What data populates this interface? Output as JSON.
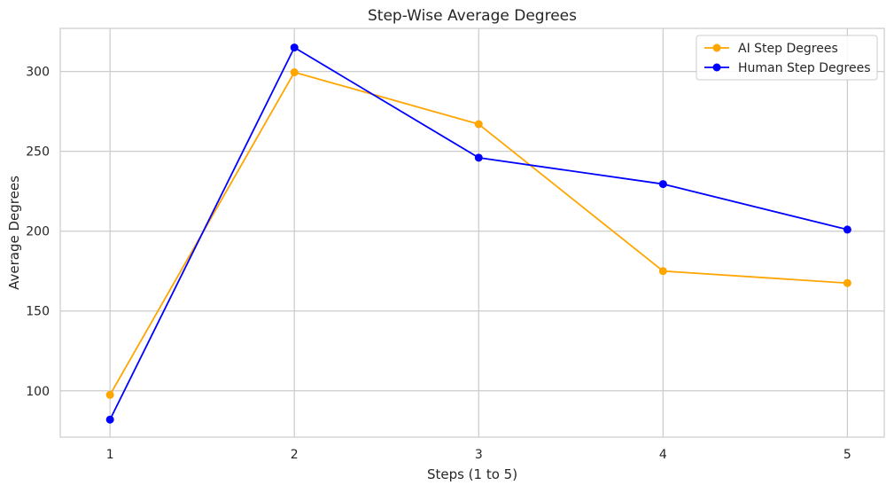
{
  "chart_data": {
    "type": "line",
    "title": "Step-Wise Average Degrees",
    "xlabel": "Steps (1 to 5)",
    "ylabel": "Average Degrees",
    "x": [
      1,
      2,
      3,
      4,
      5
    ],
    "xlim": [
      0.73,
      5.2
    ],
    "ylim": [
      71,
      327
    ],
    "xticks": [
      1,
      2,
      3,
      4,
      5
    ],
    "yticks": [
      100,
      150,
      200,
      250,
      300
    ],
    "grid": true,
    "legend_position": "top-right",
    "series": [
      {
        "name": "AI Step Degrees",
        "color": "#FFA500",
        "marker": "circle",
        "values": [
          97.5,
          299.5,
          267,
          175,
          167.5
        ]
      },
      {
        "name": "Human Step Degrees",
        "color": "#0000FF",
        "marker": "circle",
        "values": [
          82,
          315,
          246,
          229.5,
          201
        ]
      }
    ]
  }
}
